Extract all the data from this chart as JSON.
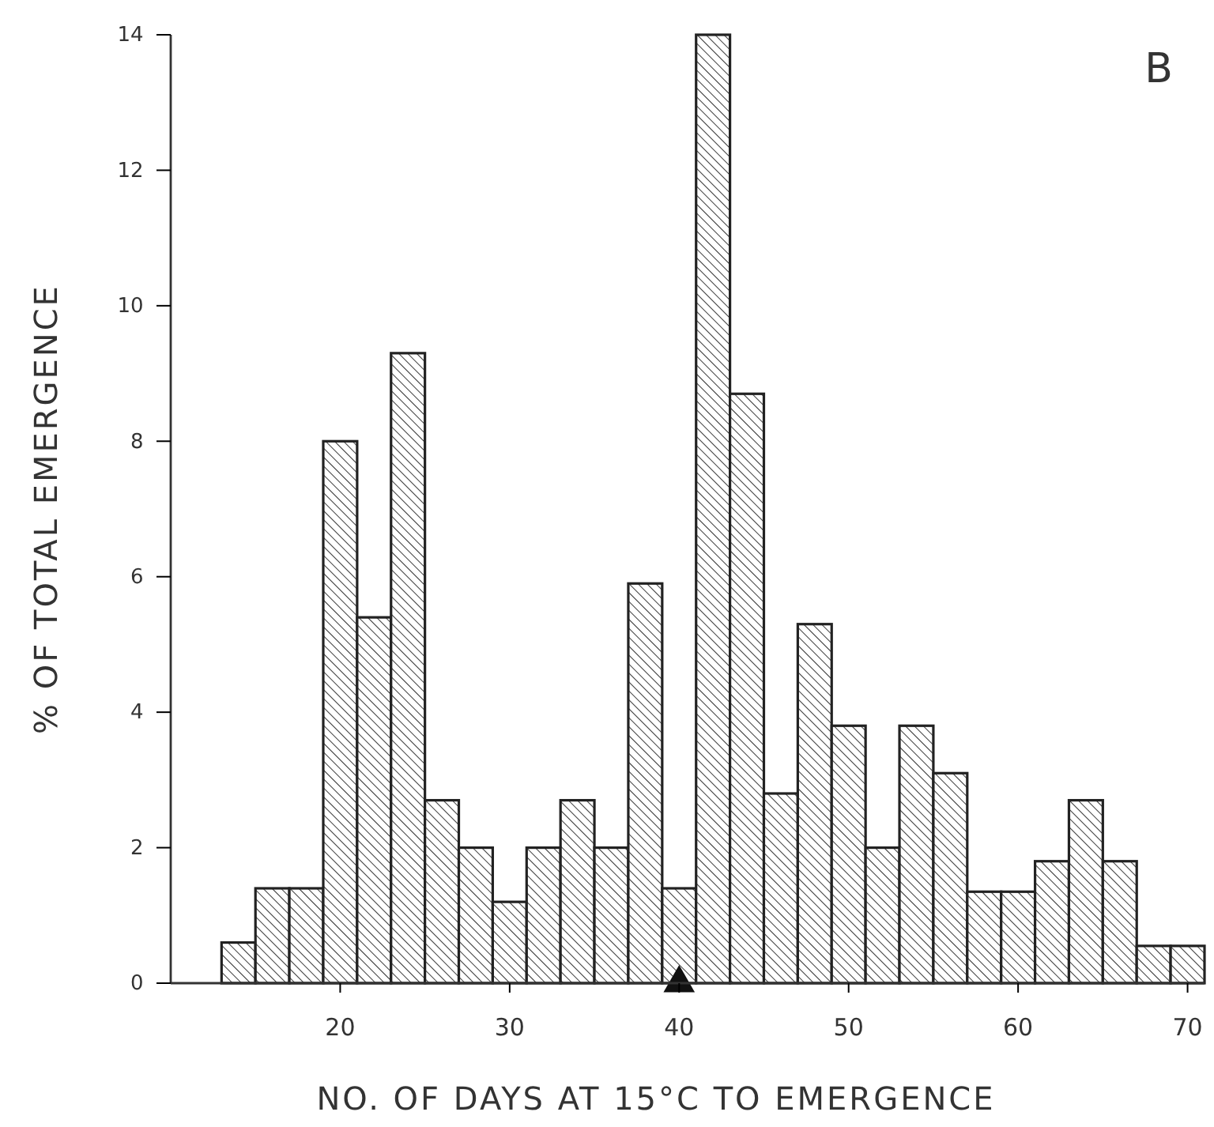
{
  "chart_data": {
    "type": "histogram",
    "xlabel": "NO. OF DAYS AT 15°C TO EMERGENCE",
    "ylabel": "% OF TOTAL EMERGENCE",
    "annotations": [
      "B"
    ],
    "bins": [
      13,
      15,
      17,
      19,
      21,
      23,
      25,
      27,
      29,
      31,
      33,
      35,
      37,
      39,
      41,
      43,
      45,
      47,
      49,
      51,
      53,
      55,
      57,
      59,
      61,
      63,
      65,
      67,
      69,
      71
    ],
    "series": [
      {
        "color": "#222222",
        "values": [
          0.6,
          1.4,
          1.4,
          8.0,
          5.4,
          9.3,
          2.7,
          2.0,
          1.2,
          2.0,
          2.7,
          2.0,
          5.9,
          1.4,
          14.0,
          8.7,
          2.8,
          5.3,
          3.8,
          2.0,
          3.8,
          3.1,
          1.35,
          1.35,
          1.8,
          2.7,
          1.8,
          0.55,
          0.55
        ]
      },
      {
        "type": "scatter",
        "marker": "triangle",
        "color": "#111111",
        "x": [
          40
        ],
        "values": [
          0
        ]
      }
    ],
    "xlim": [
      10,
      71
    ],
    "xticks": [
      20,
      30,
      40,
      50,
      60,
      70
    ],
    "ylim": [
      0,
      14
    ],
    "yticks": [
      0,
      2,
      4,
      6,
      8,
      10,
      12,
      14
    ],
    "grid": false
  }
}
